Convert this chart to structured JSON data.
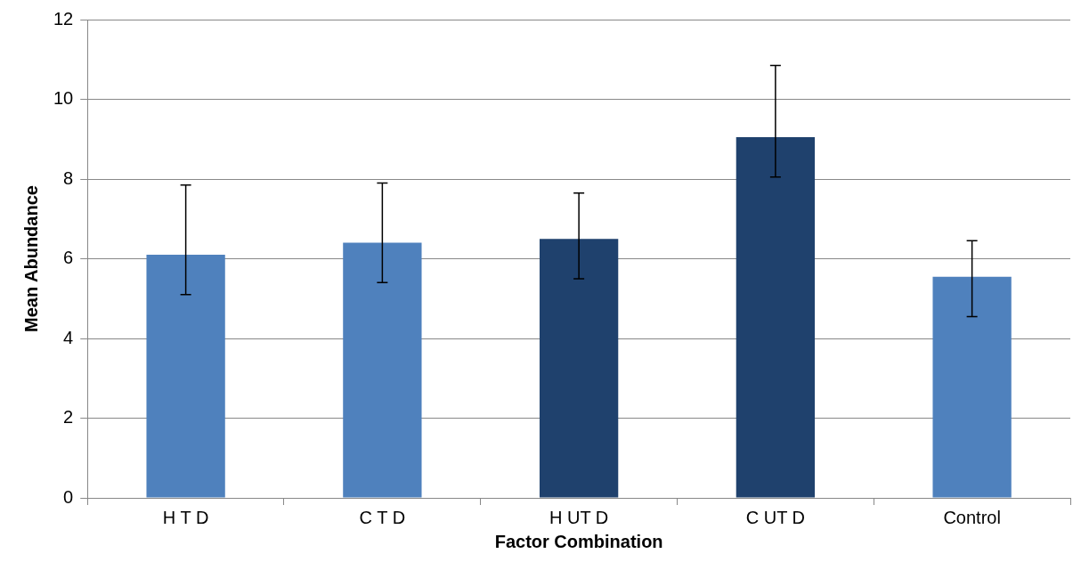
{
  "chart_data": {
    "type": "bar",
    "xlabel": "Factor Combination",
    "ylabel": "Mean Abundance",
    "categories": [
      "H T D",
      "C T D",
      "H UT D",
      "C UT D",
      "Control"
    ],
    "series": [
      {
        "values": [
          6.1,
          6.4,
          6.5,
          9.05,
          5.55
        ],
        "colors": [
          "#4f81bd",
          "#4f81bd",
          "#1f416d",
          "#1f416d",
          "#4f81bd"
        ],
        "errors": [
          [
            5.1,
            7.85
          ],
          [
            5.4,
            7.9
          ],
          [
            5.5,
            7.65
          ],
          [
            8.05,
            10.85
          ],
          [
            4.55,
            6.45
          ]
        ]
      }
    ],
    "ylim": [
      0,
      12
    ],
    "yticks": [
      0,
      2,
      4,
      6,
      8,
      10,
      12
    ],
    "grid": "y",
    "legend": false
  }
}
